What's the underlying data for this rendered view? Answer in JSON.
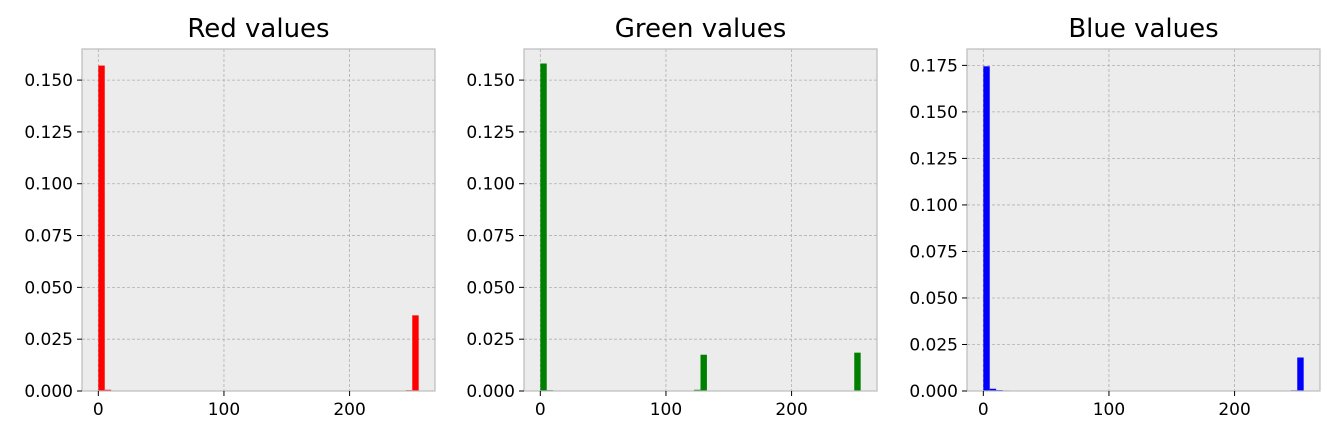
{
  "chart_data": [
    {
      "type": "bar",
      "title": "Red values",
      "color": "#ff0000",
      "xlim": [
        -13,
        268
      ],
      "ylim": [
        0,
        0.165
      ],
      "xticks": [
        0,
        100,
        200
      ],
      "yticks": [
        0.0,
        0.025,
        0.05,
        0.075,
        0.1,
        0.125,
        0.15
      ],
      "tick_labels_y": [
        "0.000",
        "0.025",
        "0.050",
        "0.075",
        "0.100",
        "0.125",
        "0.150"
      ],
      "tick_labels_x": [
        "0",
        "100",
        "200"
      ],
      "grid": true,
      "bins": [
        {
          "x0": 0,
          "x1": 5.1,
          "value": 0.157
        },
        {
          "x0": 5.1,
          "x1": 10.2,
          "value": 0.0006
        },
        {
          "x0": 10.2,
          "x1": 15.3,
          "value": 0.0002
        },
        {
          "x0": 244.8,
          "x1": 249.9,
          "value": 0.0004
        },
        {
          "x0": 249.9,
          "x1": 255,
          "value": 0.0365
        }
      ]
    },
    {
      "type": "bar",
      "title": "Green values",
      "color": "#008000",
      "xlim": [
        -13,
        268
      ],
      "ylim": [
        0,
        0.165
      ],
      "xticks": [
        0,
        100,
        200
      ],
      "yticks": [
        0.0,
        0.025,
        0.05,
        0.075,
        0.1,
        0.125,
        0.15
      ],
      "tick_labels_y": [
        "0.000",
        "0.025",
        "0.050",
        "0.075",
        "0.100",
        "0.125",
        "0.150"
      ],
      "tick_labels_x": [
        "0",
        "100",
        "200"
      ],
      "grid": true,
      "bins": [
        {
          "x0": 0,
          "x1": 5.1,
          "value": 0.158
        },
        {
          "x0": 5.1,
          "x1": 10.2,
          "value": 0.0004
        },
        {
          "x0": 122.4,
          "x1": 127.5,
          "value": 0.0006
        },
        {
          "x0": 127.5,
          "x1": 132.6,
          "value": 0.0175
        },
        {
          "x0": 249.9,
          "x1": 255,
          "value": 0.0185
        }
      ]
    },
    {
      "type": "bar",
      "title": "Blue values",
      "color": "#0000ff",
      "xlim": [
        -13,
        268
      ],
      "ylim": [
        0,
        0.1838
      ],
      "xticks": [
        0,
        100,
        200
      ],
      "yticks": [
        0.0,
        0.025,
        0.05,
        0.075,
        0.1,
        0.125,
        0.15,
        0.175
      ],
      "tick_labels_y": [
        "0.000",
        "0.025",
        "0.050",
        "0.075",
        "0.100",
        "0.125",
        "0.150",
        "0.175"
      ],
      "tick_labels_x": [
        "0",
        "100",
        "200"
      ],
      "grid": true,
      "bins": [
        {
          "x0": 0,
          "x1": 5.1,
          "value": 0.1745
        },
        {
          "x0": 5.1,
          "x1": 10.2,
          "value": 0.0012
        },
        {
          "x0": 10.2,
          "x1": 15.3,
          "value": 0.0005
        },
        {
          "x0": 15.3,
          "x1": 20.4,
          "value": 0.0003
        },
        {
          "x0": 244.8,
          "x1": 249.9,
          "value": 0.0004
        },
        {
          "x0": 249.9,
          "x1": 255,
          "value": 0.018
        }
      ]
    }
  ]
}
